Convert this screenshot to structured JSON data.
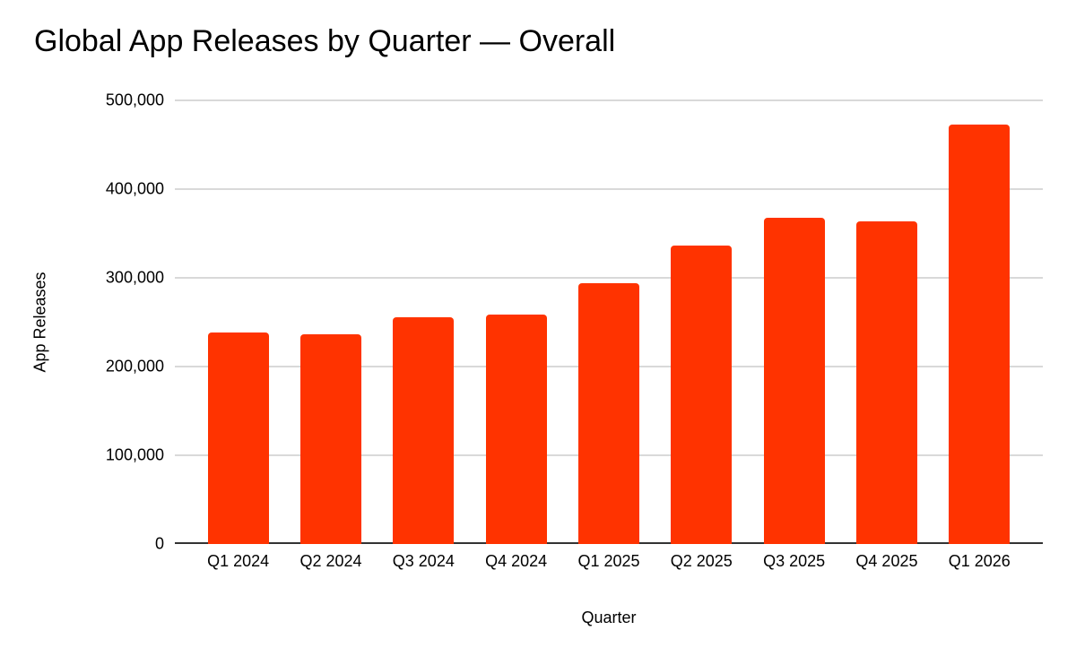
{
  "chart_data": {
    "type": "bar",
    "title": "Global App Releases by Quarter — Overall",
    "xlabel": "Quarter",
    "ylabel": "App Releases",
    "categories": [
      "Q1 2024",
      "Q2 2024",
      "Q3 2024",
      "Q4 2024",
      "Q1 2025",
      "Q2 2025",
      "Q3 2025",
      "Q4 2025",
      "Q1 2026"
    ],
    "values": [
      238000,
      236000,
      256000,
      259000,
      294000,
      336000,
      368000,
      364000,
      473000
    ],
    "ylim": [
      0,
      500000
    ],
    "y_ticks": [
      0,
      100000,
      200000,
      300000,
      400000,
      500000
    ],
    "y_tick_labels": [
      "0",
      "100,000",
      "200,000",
      "300,000",
      "400,000",
      "500,000"
    ],
    "grid": true,
    "legend": "none",
    "bar_color": "#FF3300",
    "gridline_color": "#D9D9D9",
    "axis_line_color": "#333333",
    "background_color": "#FFFFFF",
    "text_color": "#000000"
  }
}
